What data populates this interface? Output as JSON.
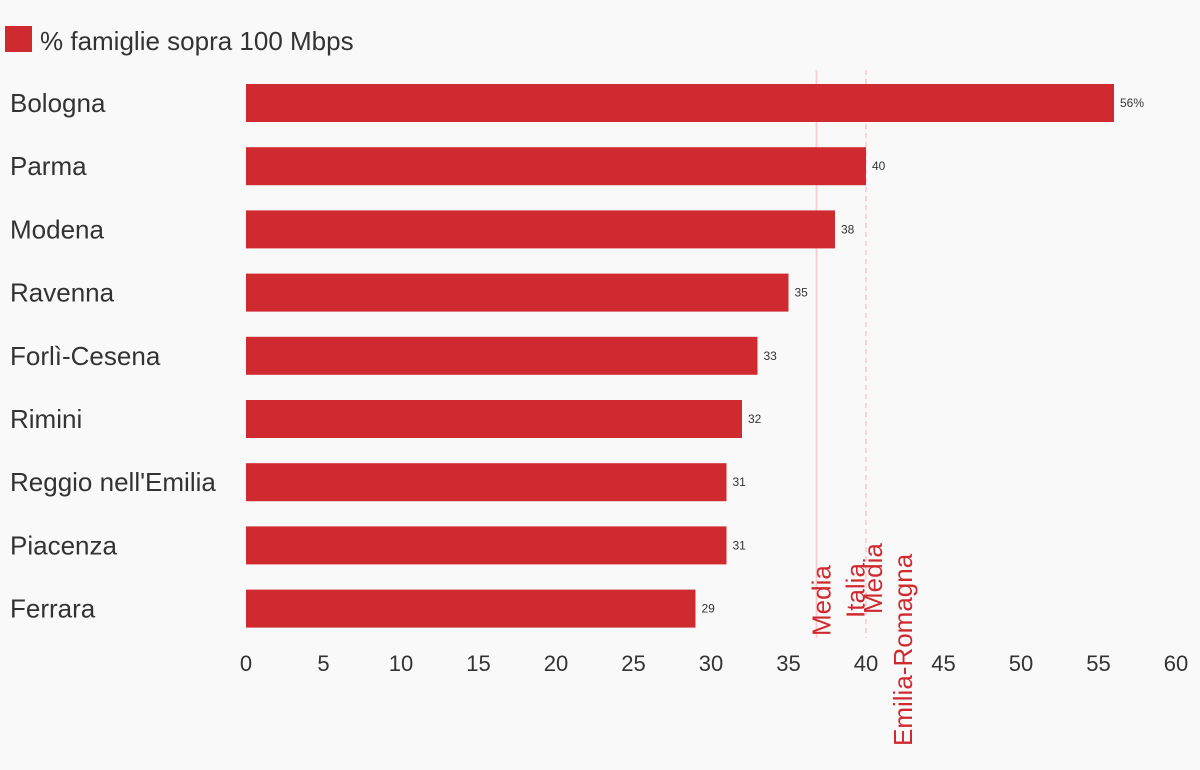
{
  "chart_data": {
    "type": "bar",
    "orientation": "horizontal",
    "legend": {
      "label": "% famiglie sopra 100 Mbps",
      "color": "#cf2a30",
      "placement": "top-left"
    },
    "categories": [
      "Bologna",
      "Parma",
      "Modena",
      "Ravenna",
      "Forlì-Cesena",
      "Rimini",
      "Reggio nell'Emilia",
      "Piacenza",
      "Ferrara"
    ],
    "values": [
      56,
      40,
      38,
      35,
      33,
      32,
      31,
      31,
      29
    ],
    "value_labels": [
      "56%",
      "40",
      "38",
      "35",
      "33",
      "32",
      "31",
      "31",
      "29"
    ],
    "xlim": [
      0,
      60
    ],
    "x_ticks": [
      0,
      5,
      10,
      15,
      20,
      25,
      30,
      35,
      40,
      45,
      50,
      55,
      60
    ],
    "grid": false,
    "bar_color": "#cf2a30",
    "reference_lines": [
      {
        "value": 36.8,
        "label_lines": [
          "Media",
          "Italia"
        ],
        "color": "#cf2a30",
        "line_color": "#ffc7c9",
        "dashed": false
      },
      {
        "value": 40,
        "label_lines": [
          "Media",
          "Emilia-Romagna"
        ],
        "color": "#cf2a30",
        "line_color": "#ffc7c9",
        "dashed": true
      }
    ]
  }
}
